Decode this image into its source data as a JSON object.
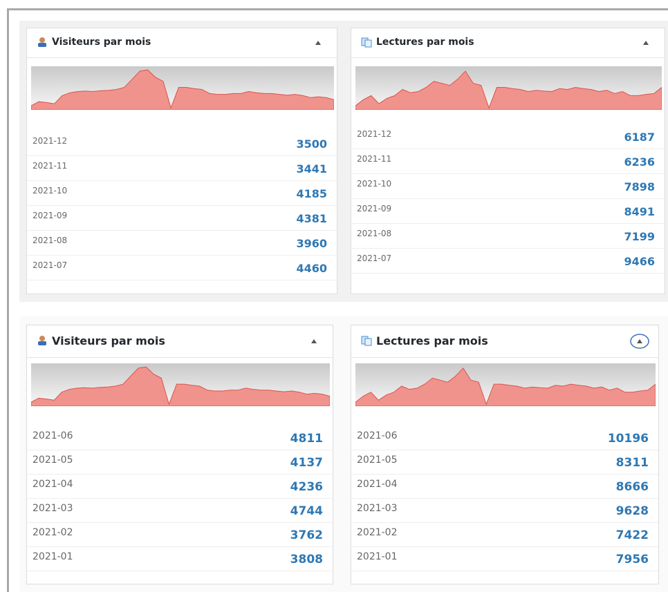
{
  "panels": [
    {
      "title": "Visiteurs par mois",
      "icon": "user",
      "sparkline": [
        10,
        20,
        18,
        15,
        35,
        42,
        45,
        46,
        45,
        47,
        48,
        50,
        55,
        75,
        95,
        98,
        80,
        70,
        5,
        55,
        55,
        52,
        50,
        40,
        38,
        38,
        40,
        40,
        45,
        42,
        40,
        40,
        38,
        36,
        38,
        35,
        30,
        32,
        30,
        25
      ],
      "rows": [
        {
          "date": "2021-12",
          "value": 3500
        },
        {
          "date": "2021-11",
          "value": 3441
        },
        {
          "date": "2021-10",
          "value": 4185
        },
        {
          "date": "2021-09",
          "value": 4381
        },
        {
          "date": "2021-08",
          "value": 3960
        },
        {
          "date": "2021-07",
          "value": 4460
        }
      ]
    },
    {
      "title": "Lectures par mois",
      "icon": "pages",
      "sparkline": [
        10,
        25,
        35,
        15,
        28,
        35,
        50,
        42,
        45,
        55,
        70,
        65,
        60,
        75,
        95,
        65,
        60,
        5,
        55,
        55,
        52,
        50,
        45,
        48,
        46,
        45,
        52,
        50,
        55,
        52,
        50,
        45,
        48,
        40,
        45,
        35,
        35,
        38,
        40,
        55
      ],
      "rows": [
        {
          "date": "2021-12",
          "value": 6187
        },
        {
          "date": "2021-11",
          "value": 6236
        },
        {
          "date": "2021-10",
          "value": 7898
        },
        {
          "date": "2021-09",
          "value": 8491
        },
        {
          "date": "2021-08",
          "value": 7199
        },
        {
          "date": "2021-07",
          "value": 9466
        }
      ]
    },
    {
      "title": "Visiteurs par mois",
      "icon": "user",
      "sparkline": [
        10,
        20,
        18,
        15,
        35,
        42,
        45,
        46,
        45,
        47,
        48,
        50,
        55,
        75,
        95,
        98,
        80,
        70,
        5,
        55,
        55,
        52,
        50,
        40,
        38,
        38,
        40,
        40,
        45,
        42,
        40,
        40,
        38,
        36,
        38,
        35,
        30,
        32,
        30,
        25
      ],
      "rows": [
        {
          "date": "2021-06",
          "value": 4811
        },
        {
          "date": "2021-05",
          "value": 4137
        },
        {
          "date": "2021-04",
          "value": 4236
        },
        {
          "date": "2021-03",
          "value": 4744
        },
        {
          "date": "2021-02",
          "value": 3762
        },
        {
          "date": "2021-01",
          "value": 3808
        }
      ]
    },
    {
      "title": "Lectures par mois",
      "icon": "pages",
      "sparkline": [
        10,
        25,
        35,
        15,
        28,
        35,
        50,
        42,
        45,
        55,
        70,
        65,
        60,
        75,
        95,
        65,
        60,
        5,
        55,
        55,
        52,
        50,
        45,
        48,
        46,
        45,
        52,
        50,
        55,
        52,
        50,
        45,
        48,
        40,
        45,
        35,
        35,
        38,
        40,
        55
      ],
      "rows": [
        {
          "date": "2021-06",
          "value": 10196
        },
        {
          "date": "2021-05",
          "value": 8311
        },
        {
          "date": "2021-04",
          "value": 8666
        },
        {
          "date": "2021-03",
          "value": 9628
        },
        {
          "date": "2021-02",
          "value": 7422
        },
        {
          "date": "2021-01",
          "value": 7956
        }
      ]
    }
  ]
}
